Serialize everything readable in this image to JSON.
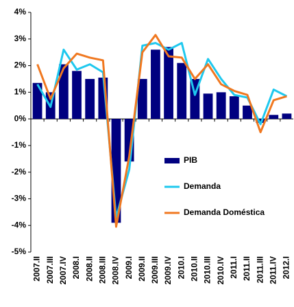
{
  "chart_data": {
    "type": "bar-line",
    "categories": [
      "2007.II",
      "2007.III",
      "2007.IV",
      "2008.I",
      "2008.II",
      "2008.III",
      "2008.IV",
      "2009.I",
      "2009.II",
      "2009.III",
      "2009.IV",
      "2010.I",
      "2010.II",
      "2010.III",
      "2010.IV",
      "2011.I",
      "2011.II",
      "2011.III",
      "2011.IV",
      "2012.I"
    ],
    "series": [
      {
        "name": "PIB",
        "type": "bar",
        "color": "#000080",
        "values": [
          1.35,
          1.0,
          2.05,
          1.8,
          1.5,
          1.55,
          -3.9,
          -1.6,
          1.5,
          2.6,
          2.7,
          2.1,
          1.5,
          0.95,
          1.0,
          0.85,
          0.5,
          -0.15,
          0.15,
          0.2
        ]
      },
      {
        "name": "Demanda",
        "type": "line",
        "color": "#1ec8ee",
        "values": [
          1.3,
          0.45,
          2.6,
          1.85,
          2.05,
          1.75,
          -3.7,
          -1.9,
          2.75,
          2.85,
          2.6,
          2.85,
          0.9,
          2.25,
          1.5,
          0.9,
          0.8,
          -0.2,
          1.1,
          0.85
        ]
      },
      {
        "name": "Demanda Doméstica",
        "type": "line",
        "color": "#f07820",
        "values": [
          2.05,
          0.75,
          1.9,
          2.45,
          2.3,
          2.2,
          -4.05,
          -1.4,
          2.5,
          3.15,
          2.35,
          2.3,
          1.5,
          2.05,
          1.3,
          1.05,
          0.9,
          -0.5,
          0.7,
          0.85
        ]
      }
    ],
    "ylim": [
      -5,
      4
    ],
    "yticks": [
      {
        "value": -5,
        "label": "-5%"
      },
      {
        "value": -4,
        "label": "-4%"
      },
      {
        "value": -3,
        "label": "-3%"
      },
      {
        "value": -2,
        "label": "-2%"
      },
      {
        "value": -1,
        "label": "-1%"
      },
      {
        "value": 0,
        "label": "0%"
      },
      {
        "value": 1,
        "label": "1%"
      },
      {
        "value": 2,
        "label": "2%"
      },
      {
        "value": 3,
        "label": "3%"
      },
      {
        "value": 4,
        "label": "4%"
      }
    ]
  }
}
